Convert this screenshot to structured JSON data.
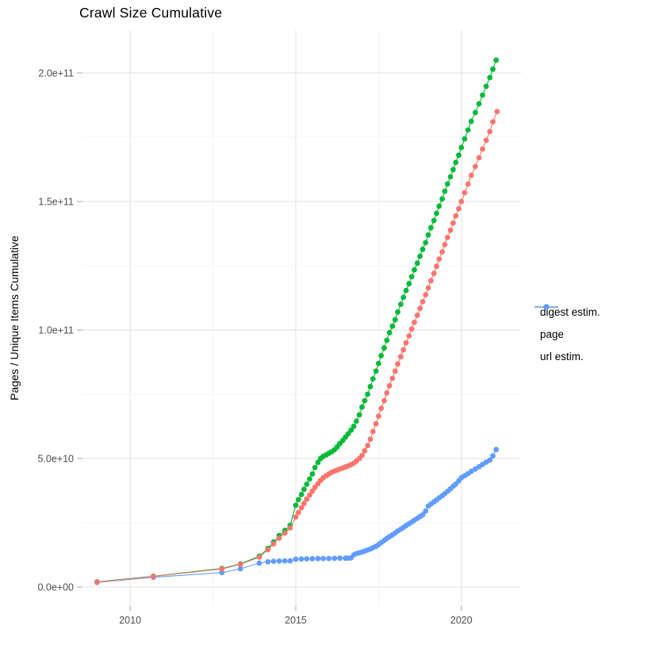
{
  "chart_data": {
    "type": "scatter",
    "title": "Crawl Size Cumulative",
    "subtitle": "",
    "xlabel": "",
    "ylabel": "Pages / Unique Items Cumulative",
    "grid": true,
    "legend_position": "right",
    "background": "#ffffff",
    "grid_major_color": "#e8e8e8",
    "grid_minor_color": "#f1f1f1",
    "tick_color": "#b5b5b5",
    "tick_label_color": "#4d4d4d",
    "xlim": [
      2008.56,
      2021.8
    ],
    "ylim": [
      -7400000000,
      216670000000
    ],
    "value_scale": 1000000000,
    "x_ticks": [
      {
        "label": "2010",
        "value": 2010
      },
      {
        "label": "2015",
        "value": 2015
      },
      {
        "label": "2020",
        "value": 2020
      }
    ],
    "y_ticks": [
      {
        "label": "0.0e+00",
        "value": 0
      },
      {
        "label": "5.0e+10",
        "value": 50
      },
      {
        "label": "1.0e+11",
        "value": 100
      },
      {
        "label": "1.5e+11",
        "value": 150
      },
      {
        "label": "2.0e+11",
        "value": 200
      }
    ],
    "x_minor": [
      2012.5,
      2017.5
    ],
    "y_minor": [
      25,
      75,
      125,
      175
    ],
    "draw_order": [
      2,
      1,
      0
    ],
    "series": [
      {
        "name": "digest estim.",
        "color": "#F8766D",
        "points": [
          [
            2009.0,
            1.9
          ],
          [
            2010.7,
            4.1
          ],
          [
            2012.77,
            7.0
          ],
          [
            2013.33,
            8.8
          ],
          [
            2013.9,
            11.6
          ],
          [
            2014.16,
            14.5
          ],
          [
            2014.33,
            16.8
          ],
          [
            2014.5,
            19.0
          ],
          [
            2014.67,
            21.0
          ],
          [
            2014.83,
            23.0
          ],
          [
            2015.0,
            27.2
          ],
          [
            2015.08,
            29.0
          ],
          [
            2015.17,
            30.8
          ],
          [
            2015.25,
            32.5
          ],
          [
            2015.33,
            34.2
          ],
          [
            2015.42,
            35.8
          ],
          [
            2015.5,
            37.3
          ],
          [
            2015.58,
            38.8
          ],
          [
            2015.67,
            40.2
          ],
          [
            2015.75,
            41.5
          ],
          [
            2015.83,
            42.5
          ],
          [
            2015.92,
            43.3
          ],
          [
            2016.0,
            44.0
          ],
          [
            2016.08,
            44.6
          ],
          [
            2016.17,
            45.1
          ],
          [
            2016.25,
            45.5
          ],
          [
            2016.33,
            45.9
          ],
          [
            2016.42,
            46.3
          ],
          [
            2016.5,
            46.7
          ],
          [
            2016.58,
            47.1
          ],
          [
            2016.67,
            47.6
          ],
          [
            2016.75,
            48.2
          ],
          [
            2016.83,
            49.0
          ],
          [
            2016.92,
            50.0
          ],
          [
            2017.0,
            51.2
          ],
          [
            2017.08,
            53.0
          ],
          [
            2017.17,
            55.0
          ],
          [
            2017.25,
            57.5
          ],
          [
            2017.33,
            60.5
          ],
          [
            2017.42,
            63.5
          ],
          [
            2017.5,
            66.5
          ],
          [
            2017.58,
            69.5
          ],
          [
            2017.67,
            72.5
          ],
          [
            2017.75,
            75.5
          ],
          [
            2017.83,
            78.3
          ],
          [
            2017.92,
            81.2
          ],
          [
            2018.0,
            84.0
          ],
          [
            2018.08,
            86.8
          ],
          [
            2018.17,
            89.6
          ],
          [
            2018.25,
            92.3
          ],
          [
            2018.33,
            95.0
          ],
          [
            2018.42,
            97.7
          ],
          [
            2018.5,
            100.4
          ],
          [
            2018.58,
            103.0
          ],
          [
            2018.67,
            105.7
          ],
          [
            2018.75,
            108.4
          ],
          [
            2018.83,
            111.0
          ],
          [
            2018.92,
            113.7
          ],
          [
            2019.0,
            116.4
          ],
          [
            2019.08,
            119.2
          ],
          [
            2019.17,
            122.0
          ],
          [
            2019.25,
            124.8
          ],
          [
            2019.33,
            127.6
          ],
          [
            2019.42,
            130.4
          ],
          [
            2019.5,
            133.2
          ],
          [
            2019.58,
            136.0
          ],
          [
            2019.67,
            138.8
          ],
          [
            2019.75,
            141.6
          ],
          [
            2019.83,
            144.4
          ],
          [
            2019.92,
            147.2
          ],
          [
            2020.0,
            150.0
          ],
          [
            2020.1,
            153.4
          ],
          [
            2020.2,
            156.8
          ],
          [
            2020.3,
            160.2
          ],
          [
            2020.42,
            163.6
          ],
          [
            2020.53,
            167.0
          ],
          [
            2020.64,
            170.4
          ],
          [
            2020.75,
            173.8
          ],
          [
            2020.86,
            177.2
          ],
          [
            2020.95,
            181.0
          ],
          [
            2021.08,
            185.0
          ]
        ]
      },
      {
        "name": "page",
        "color": "#00BA38",
        "points": [
          [
            2009.0,
            2.0
          ],
          [
            2010.7,
            4.2
          ],
          [
            2012.77,
            7.2
          ],
          [
            2013.33,
            9.0
          ],
          [
            2013.9,
            12.0
          ],
          [
            2014.16,
            15.0
          ],
          [
            2014.33,
            17.5
          ],
          [
            2014.5,
            20.0
          ],
          [
            2014.67,
            22.0
          ],
          [
            2014.83,
            24.0
          ],
          [
            2015.0,
            31.8
          ],
          [
            2015.08,
            34.0
          ],
          [
            2015.17,
            36.0
          ],
          [
            2015.25,
            38.0
          ],
          [
            2015.33,
            40.0
          ],
          [
            2015.42,
            42.0
          ],
          [
            2015.5,
            44.0
          ],
          [
            2015.58,
            46.5
          ],
          [
            2015.67,
            48.5
          ],
          [
            2015.75,
            50.0
          ],
          [
            2015.83,
            50.8
          ],
          [
            2015.92,
            51.4
          ],
          [
            2016.0,
            52.0
          ],
          [
            2016.08,
            52.6
          ],
          [
            2016.17,
            53.4
          ],
          [
            2016.25,
            54.5
          ],
          [
            2016.33,
            55.8
          ],
          [
            2016.42,
            57.0
          ],
          [
            2016.5,
            58.3
          ],
          [
            2016.58,
            59.6
          ],
          [
            2016.67,
            61.0
          ],
          [
            2016.75,
            62.5
          ],
          [
            2016.83,
            64.5
          ],
          [
            2016.92,
            67.0
          ],
          [
            2017.0,
            70.0
          ],
          [
            2017.08,
            72.5
          ],
          [
            2017.17,
            75.0
          ],
          [
            2017.25,
            78.0
          ],
          [
            2017.33,
            81.0
          ],
          [
            2017.42,
            84.0
          ],
          [
            2017.5,
            87.0
          ],
          [
            2017.58,
            90.0
          ],
          [
            2017.67,
            93.0
          ],
          [
            2017.75,
            96.0
          ],
          [
            2017.83,
            99.0
          ],
          [
            2017.92,
            101.5
          ],
          [
            2018.0,
            104.0
          ],
          [
            2018.08,
            107.0
          ],
          [
            2018.17,
            110.0
          ],
          [
            2018.25,
            112.7
          ],
          [
            2018.33,
            115.4
          ],
          [
            2018.42,
            118.0
          ],
          [
            2018.5,
            120.7
          ],
          [
            2018.58,
            123.4
          ],
          [
            2018.67,
            126.0
          ],
          [
            2018.75,
            128.7
          ],
          [
            2018.83,
            131.4
          ],
          [
            2018.92,
            134.0
          ],
          [
            2019.0,
            137.0
          ],
          [
            2019.08,
            139.8
          ],
          [
            2019.17,
            142.6
          ],
          [
            2019.25,
            145.4
          ],
          [
            2019.33,
            148.2
          ],
          [
            2019.42,
            151.0
          ],
          [
            2019.5,
            154.0
          ],
          [
            2019.58,
            156.8
          ],
          [
            2019.67,
            159.6
          ],
          [
            2019.75,
            162.4
          ],
          [
            2019.83,
            165.2
          ],
          [
            2019.92,
            168.0
          ],
          [
            2020.0,
            171.0
          ],
          [
            2020.1,
            174.4
          ],
          [
            2020.2,
            177.8
          ],
          [
            2020.3,
            181.2
          ],
          [
            2020.42,
            184.6
          ],
          [
            2020.53,
            188.0
          ],
          [
            2020.64,
            191.4
          ],
          [
            2020.75,
            194.8
          ],
          [
            2020.86,
            198.2
          ],
          [
            2020.95,
            201.5
          ],
          [
            2021.05,
            205.0
          ]
        ]
      },
      {
        "name": "url estim.",
        "color": "#619CFF",
        "points": [
          [
            2009.0,
            1.8
          ],
          [
            2010.7,
            3.8
          ],
          [
            2012.77,
            5.6
          ],
          [
            2013.33,
            7.1
          ],
          [
            2013.9,
            9.3
          ],
          [
            2014.16,
            9.8
          ],
          [
            2014.33,
            10.0
          ],
          [
            2014.5,
            10.1
          ],
          [
            2014.67,
            10.15
          ],
          [
            2014.83,
            10.2
          ],
          [
            2015.0,
            10.8
          ],
          [
            2015.17,
            10.9
          ],
          [
            2015.33,
            10.95
          ],
          [
            2015.5,
            11.0
          ],
          [
            2015.67,
            11.05
          ],
          [
            2015.83,
            11.1
          ],
          [
            2016.0,
            11.1
          ],
          [
            2016.17,
            11.15
          ],
          [
            2016.33,
            11.2
          ],
          [
            2016.5,
            11.2
          ],
          [
            2016.58,
            11.25
          ],
          [
            2016.67,
            11.3
          ],
          [
            2016.75,
            12.5
          ],
          [
            2016.83,
            13.0
          ],
          [
            2016.92,
            13.3
          ],
          [
            2017.0,
            13.6
          ],
          [
            2017.08,
            14.0
          ],
          [
            2017.17,
            14.4
          ],
          [
            2017.25,
            14.8
          ],
          [
            2017.33,
            15.3
          ],
          [
            2017.42,
            15.8
          ],
          [
            2017.5,
            16.5
          ],
          [
            2017.58,
            17.3
          ],
          [
            2017.67,
            18.1
          ],
          [
            2017.75,
            18.9
          ],
          [
            2017.83,
            19.6
          ],
          [
            2017.92,
            20.3
          ],
          [
            2018.0,
            21.0
          ],
          [
            2018.08,
            21.8
          ],
          [
            2018.17,
            22.5
          ],
          [
            2018.25,
            23.2
          ],
          [
            2018.33,
            23.9
          ],
          [
            2018.42,
            24.6
          ],
          [
            2018.5,
            25.3
          ],
          [
            2018.58,
            26.0
          ],
          [
            2018.67,
            26.7
          ],
          [
            2018.75,
            27.4
          ],
          [
            2018.83,
            28.1
          ],
          [
            2018.92,
            29.5
          ],
          [
            2019.0,
            31.5
          ],
          [
            2019.08,
            32.3
          ],
          [
            2019.17,
            33.1
          ],
          [
            2019.25,
            33.9
          ],
          [
            2019.33,
            34.7
          ],
          [
            2019.42,
            35.5
          ],
          [
            2019.5,
            36.3
          ],
          [
            2019.58,
            37.2
          ],
          [
            2019.67,
            38.2
          ],
          [
            2019.75,
            39.2
          ],
          [
            2019.83,
            40.0
          ],
          [
            2019.92,
            41.3
          ],
          [
            2020.0,
            42.5
          ],
          [
            2020.1,
            43.3
          ],
          [
            2020.2,
            44.1
          ],
          [
            2020.3,
            45.0
          ],
          [
            2020.42,
            45.9
          ],
          [
            2020.53,
            46.8
          ],
          [
            2020.64,
            47.7
          ],
          [
            2020.75,
            48.6
          ],
          [
            2020.86,
            49.4
          ],
          [
            2020.95,
            51.0
          ],
          [
            2021.05,
            53.5
          ]
        ]
      }
    ]
  }
}
